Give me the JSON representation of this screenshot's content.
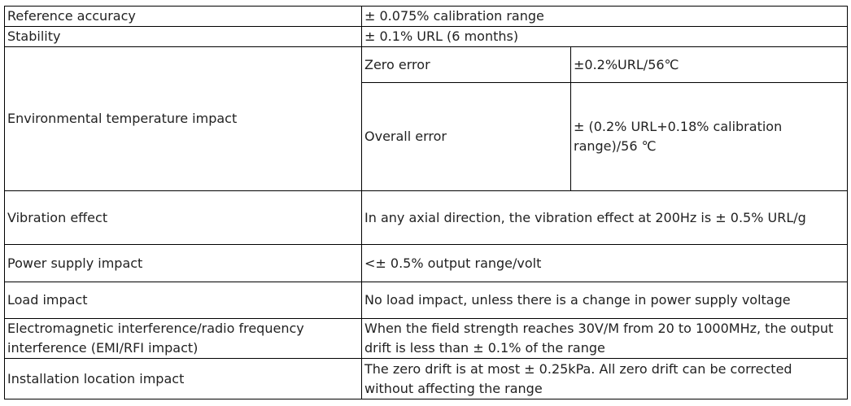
{
  "table": {
    "reference_accuracy": {
      "label": "Reference accuracy",
      "value": "± 0.075% calibration range"
    },
    "stability": {
      "label": "Stability",
      "value": "± 0.1% URL (6 months)"
    },
    "environmental_temperature": {
      "label": "Environmental temperature impact",
      "zero_error_label": "Zero error",
      "zero_error_value": "±0.2%URL/56℃",
      "overall_error_label": "Overall error",
      "overall_error_value_line1": "± (0.2% URL+0.18% calibration",
      "overall_error_value_line2": "range)/56 ℃"
    },
    "vibration_effect": {
      "label": "Vibration effect",
      "value": "In any axial direction, the vibration effect at 200Hz is ± 0.5% URL/g"
    },
    "power_supply_impact": {
      "label": "Power supply impact",
      "value": "<± 0.5% output range/volt"
    },
    "load_impact": {
      "label": "Load impact",
      "value": "No load impact, unless there is a change in power supply voltage"
    },
    "emi_rfi": {
      "label_line1": "Electromagnetic interference/radio frequency",
      "label_line2": "interference (EMI/RFI impact)",
      "value_line1": "When the field strength reaches 30V/M from 20 to 1000MHz, the output",
      "value_line2": "drift is less than ± 0.1% of the range"
    },
    "installation_location": {
      "label": "Installation location impact",
      "value_line1": "The zero drift is at most ± 0.25kPa. All zero drift can be corrected",
      "value_line2": "without affecting the range"
    }
  }
}
